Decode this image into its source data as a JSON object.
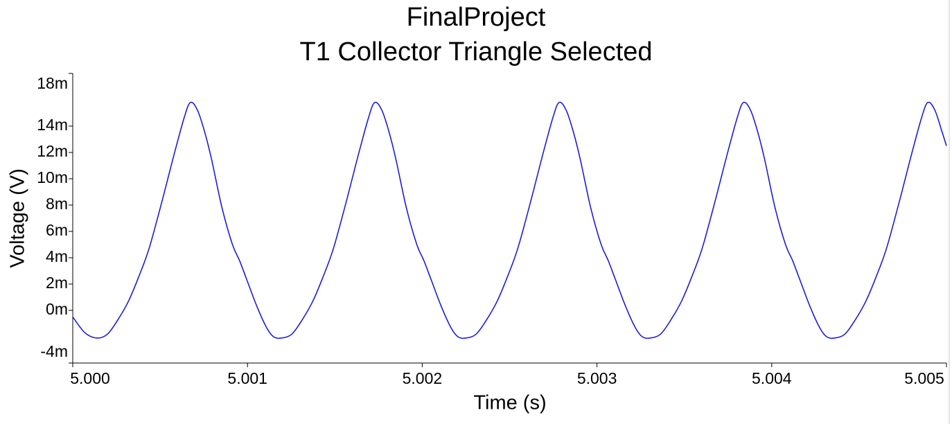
{
  "chart_data": {
    "type": "line",
    "title": "FinalProject",
    "subtitle": "T1 Collector Triangle Selected",
    "x_label": "Time (s)",
    "y_label": "Voltage (V)",
    "xlim": [
      5.0,
      5.005
    ],
    "ylim": [
      -0.004,
      0.018
    ],
    "xticks": [
      {
        "value": 5.0,
        "label": "5.000"
      },
      {
        "value": 5.001,
        "label": "5.001"
      },
      {
        "value": 5.002,
        "label": "5.002"
      },
      {
        "value": 5.003,
        "label": "5.003"
      },
      {
        "value": 5.004,
        "label": "5.004"
      },
      {
        "value": 5.005,
        "label": "5.005"
      }
    ],
    "yticks": [
      {
        "value": 0.018,
        "label": "18m"
      },
      {
        "value": 0.014,
        "label": "14m"
      },
      {
        "value": 0.012,
        "label": "12m"
      },
      {
        "value": 0.01,
        "label": "10m"
      },
      {
        "value": 0.008,
        "label": "8m"
      },
      {
        "value": 0.006,
        "label": "6m"
      },
      {
        "value": 0.004,
        "label": "4m"
      },
      {
        "value": 0.002,
        "label": "2m"
      },
      {
        "value": 0,
        "label": "0m"
      },
      {
        "value": -0.004,
        "label": "-4m"
      }
    ],
    "x": [
      5.0,
      5.00007,
      5.000139,
      5.000199,
      5.000259,
      5.000319,
      5.000379,
      5.000439,
      5.000519,
      5.000579,
      5.000639,
      5.000674,
      5.000714,
      5.000754,
      5.000794,
      5.000854,
      5.000914,
      5.000954,
      5.000994,
      5.001054,
      5.001109,
      5.001149,
      5.001194,
      5.001254,
      5.001314,
      5.001374,
      5.001434,
      5.001494,
      5.001574,
      5.001634,
      5.001694,
      5.001729,
      5.001769,
      5.001809,
      5.001849,
      5.001909,
      5.001969,
      5.002009,
      5.002049,
      5.002109,
      5.002164,
      5.002204,
      5.002249,
      5.002309,
      5.002369,
      5.002429,
      5.002489,
      5.002549,
      5.002629,
      5.002689,
      5.002749,
      5.002784,
      5.002824,
      5.002864,
      5.002904,
      5.002964,
      5.003024,
      5.003064,
      5.003104,
      5.003164,
      5.003219,
      5.003259,
      5.003304,
      5.003364,
      5.003424,
      5.003484,
      5.003544,
      5.003604,
      5.003684,
      5.003744,
      5.003804,
      5.003839,
      5.003879,
      5.003919,
      5.003959,
      5.004019,
      5.004079,
      5.004119,
      5.004159,
      5.004219,
      5.004274,
      5.004314,
      5.004359,
      5.004419,
      5.004479,
      5.004539,
      5.004599,
      5.004659,
      5.004739,
      5.004799,
      5.004859,
      5.004894,
      5.004934,
      5.004974,
      5.005
    ],
    "series": [
      {
        "color": "#1c1cd6",
        "values": [
          -0.0005,
          -0.0017,
          -0.0021,
          -0.0018,
          -0.0007,
          0.0007,
          0.0026,
          0.0048,
          0.0087,
          0.0118,
          0.0147,
          0.0158,
          0.0152,
          0.0136,
          0.0115,
          0.0078,
          0.005,
          0.0038,
          0.0024,
          0.0003,
          -0.0013,
          -0.002,
          -0.0021,
          -0.0018,
          -0.0007,
          0.0007,
          0.0026,
          0.0048,
          0.0087,
          0.0118,
          0.0147,
          0.0158,
          0.0152,
          0.0136,
          0.0115,
          0.0078,
          0.005,
          0.0038,
          0.0024,
          0.0003,
          -0.0013,
          -0.002,
          -0.0021,
          -0.0018,
          -0.0007,
          0.0007,
          0.0026,
          0.0048,
          0.0087,
          0.0118,
          0.0147,
          0.0158,
          0.0152,
          0.0136,
          0.0115,
          0.0078,
          0.005,
          0.0038,
          0.0024,
          0.0003,
          -0.0013,
          -0.002,
          -0.0021,
          -0.0018,
          -0.0007,
          0.0007,
          0.0026,
          0.0048,
          0.0087,
          0.0118,
          0.0147,
          0.0158,
          0.0152,
          0.0136,
          0.0115,
          0.0078,
          0.005,
          0.0038,
          0.0024,
          0.0003,
          -0.0013,
          -0.002,
          -0.0021,
          -0.0018,
          -0.0007,
          0.0007,
          0.0026,
          0.0048,
          0.0087,
          0.0118,
          0.0147,
          0.0158,
          0.0152,
          0.0136,
          0.0125
        ]
      }
    ]
  }
}
